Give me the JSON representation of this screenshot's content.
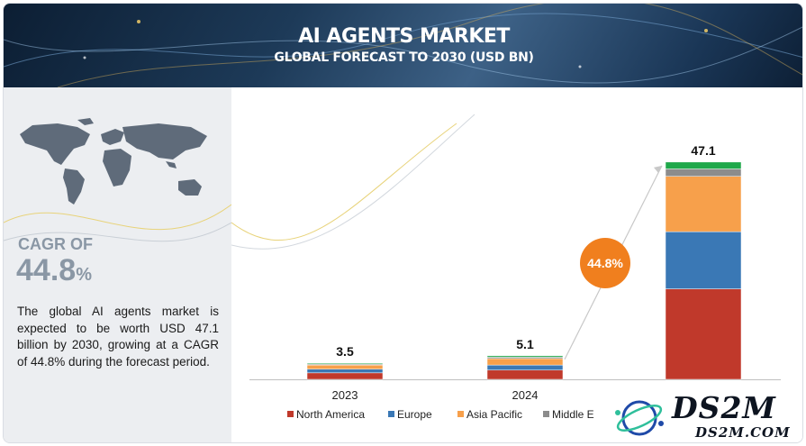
{
  "header": {
    "title": "AI AGENTS MARKET",
    "subtitle": "GLOBAL FORECAST TO 2030 (USD BN)"
  },
  "summary": {
    "cagr_label": "CAGR OF",
    "cagr_number": "44.8",
    "cagr_unit": "%",
    "description": "The global AI agents market is expected to be worth USD 47.1 billion by 2030, growing at a CAGR of 44.8% during the forecast period."
  },
  "growth_bubble": "44.8%",
  "logo": {
    "main": "DS2M",
    "sub": "DS2M.COM"
  },
  "colors": {
    "north_america": "#c0392b",
    "europe": "#3a78b5",
    "asia_pacific": "#f7a04b",
    "middle_east": "#8c8c8c",
    "other": "#1fa84a",
    "bubble": "#f07f1e"
  },
  "chart_data": {
    "type": "bar",
    "stacked": true,
    "title": "AI AGENTS MARKET",
    "subtitle": "GLOBAL FORECAST TO 2030 (USD BN)",
    "categories": [
      "2023",
      "2024",
      ""
    ],
    "totals": [
      "3.5",
      "5.1",
      "47.1"
    ],
    "total_values": [
      3.5,
      5.1,
      47.1
    ],
    "series": [
      {
        "name": "North America",
        "values": [
          1.4,
          2.0,
          19.6
        ]
      },
      {
        "name": "Europe",
        "values": [
          0.8,
          1.1,
          12.4
        ]
      },
      {
        "name": "Asia Pacific",
        "values": [
          0.9,
          1.4,
          12.0
        ]
      },
      {
        "name": "Middle E",
        "values": [
          0.2,
          0.3,
          1.6
        ]
      },
      {
        "name": "",
        "values": [
          0.2,
          0.3,
          1.5
        ]
      }
    ],
    "legend": [
      "North America",
      "Europe",
      "Asia Pacific",
      "Middle E"
    ],
    "legend_position": "bottom",
    "ylim": [
      0,
      50
    ],
    "grid": false
  }
}
